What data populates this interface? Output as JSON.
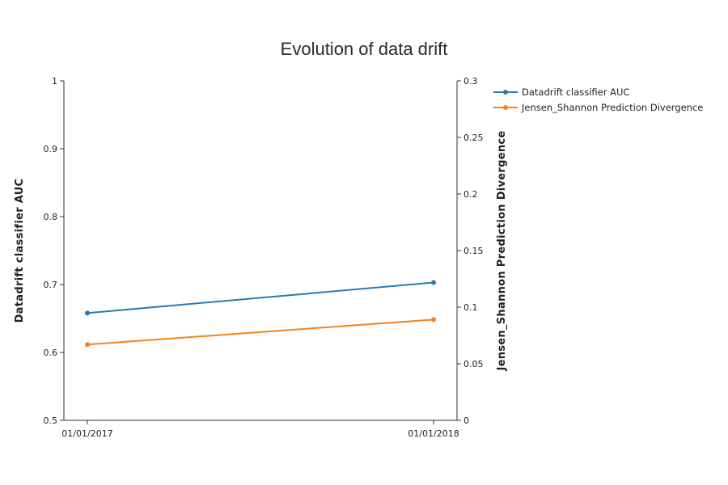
{
  "chart_data": {
    "type": "line",
    "title": "Evolution of data drift",
    "x": [
      "01/01/2017",
      "01/01/2018"
    ],
    "series": [
      {
        "name": "Datadrift classifier AUC",
        "axis": "left",
        "color": "#2b79ae",
        "values": [
          0.658,
          0.703
        ]
      },
      {
        "name": "Jensen_Shannon Prediction Divergence",
        "axis": "right",
        "color": "#f5821f",
        "values": [
          0.067,
          0.089
        ]
      }
    ],
    "y_left": {
      "label": "Datadrift classifier AUC",
      "range": [
        0.5,
        1
      ],
      "ticks": [
        "0.5",
        "0.6",
        "0.7",
        "0.8",
        "0.9",
        "1"
      ]
    },
    "y_right": {
      "label": "Jensen_Shannon Prediction Divergence",
      "range": [
        0,
        0.3
      ],
      "ticks": [
        "0",
        "0.05",
        "0.1",
        "0.15",
        "0.2",
        "0.25",
        "0.3"
      ]
    },
    "legend_position": "top-right",
    "grid": false
  }
}
